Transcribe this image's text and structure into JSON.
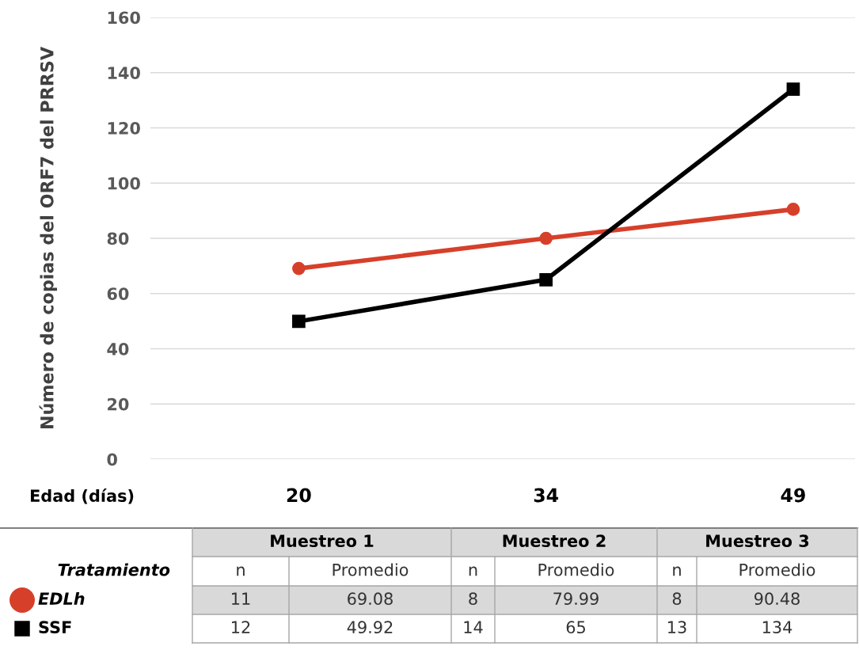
{
  "chart_data": {
    "type": "line",
    "ylabel": "Número de copias del ORF7 del PRRSV",
    "xlabel": "Edad (días)",
    "categories": [
      "20",
      "34",
      "49"
    ],
    "series": [
      {
        "name": "EDLh",
        "color": "#d6402a",
        "values": [
          69.08,
          79.99,
          90.48
        ],
        "marker": "circle"
      },
      {
        "name": "SSF",
        "color": "#000000",
        "values": [
          49.92,
          65,
          134
        ],
        "marker": "square"
      }
    ],
    "ylim": [
      0,
      160
    ],
    "yticks": [
      0,
      20,
      40,
      60,
      80,
      100,
      120,
      140,
      160
    ],
    "grid": "y",
    "legend": "bottom left",
    "data_labels": true,
    "line_style": "solid",
    "annotations": [
      "Tratamiento",
      "Muestreo 1",
      "Muestreo 2",
      "Muestreo 3",
      "n",
      "Promedio",
      "11",
      "8",
      "8",
      "12",
      "14",
      "13"
    ]
  }
}
